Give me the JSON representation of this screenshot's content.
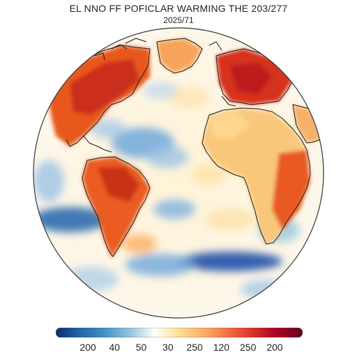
{
  "map": {
    "title": "EL NNO FF POFICLAR WARMING THE 203/277",
    "subtitle": "2025/71",
    "projection": "orthographic-globe",
    "legend": {
      "type": "continuous-colorbar",
      "ticks": [
        "200",
        "40",
        "50",
        "30",
        "250",
        "120",
        "250",
        "200"
      ],
      "colors": [
        "#08306b",
        "#2166ac",
        "#4393c3",
        "#92c5de",
        "#ffffff",
        "#fee090",
        "#fdae61",
        "#f46d43",
        "#d73027",
        "#a50026",
        "#67001f"
      ]
    },
    "regions_warm": [
      "North America",
      "Greenland",
      "Europe",
      "Africa",
      "South America"
    ],
    "regions_cool": [
      "North Atlantic",
      "South Atlantic",
      "Southern Ocean"
    ]
  }
}
